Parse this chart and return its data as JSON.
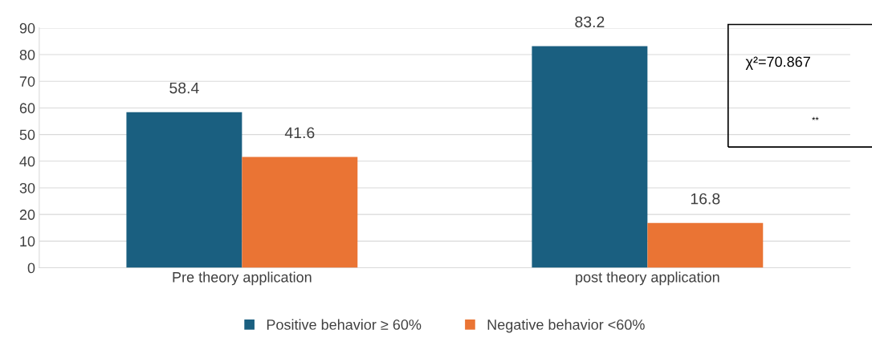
{
  "chart_data": {
    "type": "bar",
    "categories": [
      "Pre theory application",
      "post theory application"
    ],
    "series": [
      {
        "name": "Positive behavior ≥ 60%",
        "color": "#1a5f80",
        "values": [
          58.4,
          83.2
        ]
      },
      {
        "name": "Negative behavior <60%",
        "color": "#ea7434",
        "values": [
          41.6,
          16.8
        ]
      }
    ],
    "ylim": [
      0,
      90
    ],
    "yticks": [
      0,
      10,
      20,
      30,
      40,
      50,
      60,
      70,
      80,
      90
    ],
    "grid": "y",
    "legend": "bottom",
    "data_labels": true,
    "annotations": [
      "χ²=70.867",
      "**"
    ]
  }
}
